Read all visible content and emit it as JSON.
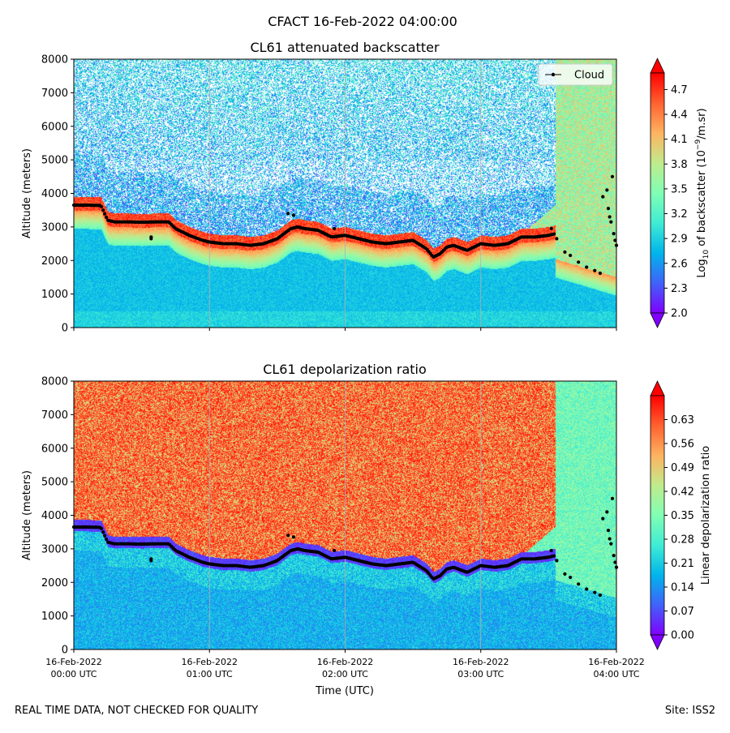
{
  "figure": {
    "title": "CFACT 16-Feb-2022 04:00:00",
    "footer_left": "REAL TIME DATA, NOT CHECKED FOR QUALITY",
    "footer_right": "Site: ISS2"
  },
  "colors": {
    "rainbow": [
      "#8000ff",
      "#4062fa",
      "#00b5eb",
      "#40ecd4",
      "#80ffb4",
      "#c0eb8d",
      "#ffb360",
      "#ff6130",
      "#ff0000"
    ],
    "cloud_marker": "#000000",
    "grid": "#b0b0b0"
  },
  "chart_data": [
    {
      "id": "backscatter",
      "type": "heatmap",
      "title": "CL61 attenuated backscatter",
      "xlabel": "",
      "ylabel": "Altitude (meters)",
      "xlim": [
        0,
        4
      ],
      "ylim": [
        0,
        8000
      ],
      "yticks": [
        "0",
        "1000",
        "2000",
        "3000",
        "4000",
        "5000",
        "6000",
        "7000",
        "8000"
      ],
      "legend": {
        "label": "Cloud",
        "position": "top-right"
      },
      "colorbar": {
        "label_pre": "Log",
        "label_sub": "10",
        "label_mid": " of backscatter (10",
        "label_sup": "−9",
        "label_post": "/m.sr)",
        "min": 2.0,
        "max": 4.9,
        "extend": "both",
        "ticks": [
          "2.0",
          "2.3",
          "2.6",
          "2.9",
          "3.2",
          "3.5",
          "3.8",
          "4.1",
          "4.4",
          "4.7"
        ]
      }
    },
    {
      "id": "depolarization",
      "type": "heatmap",
      "title": "CL61 depolarization ratio",
      "xlabel": "Time (UTC)",
      "ylabel": "Altitude (meters)",
      "xlim": [
        0,
        4
      ],
      "ylim": [
        0,
        8000
      ],
      "yticks": [
        "0",
        "1000",
        "2000",
        "3000",
        "4000",
        "5000",
        "6000",
        "7000",
        "8000"
      ],
      "xticks": [
        {
          "line1": "16-Feb-2022",
          "line2": "00:00 UTC"
        },
        {
          "line1": "16-Feb-2022",
          "line2": "01:00 UTC"
        },
        {
          "line1": "16-Feb-2022",
          "line2": "02:00 UTC"
        },
        {
          "line1": "16-Feb-2022",
          "line2": "03:00 UTC"
        },
        {
          "line1": "16-Feb-2022",
          "line2": "04:00 UTC"
        }
      ],
      "colorbar": {
        "label": "Linear depolarization ratio",
        "min": 0.0,
        "max": 0.7,
        "extend": "both",
        "ticks": [
          "0.00",
          "0.07",
          "0.14",
          "0.21",
          "0.28",
          "0.35",
          "0.42",
          "0.49",
          "0.56",
          "0.63"
        ]
      }
    }
  ],
  "cloud_base": {
    "description": "Cloud base height (m) vs time (hours UTC)",
    "time_h": [
      0.0,
      0.1,
      0.2,
      0.25,
      0.3,
      0.4,
      0.5,
      0.6,
      0.7,
      0.75,
      0.85,
      0.95,
      1.0,
      1.1,
      1.2,
      1.3,
      1.4,
      1.5,
      1.6,
      1.65,
      1.7,
      1.8,
      1.9,
      2.0,
      2.1,
      2.2,
      2.3,
      2.4,
      2.5,
      2.6,
      2.65,
      2.7,
      2.75,
      2.8,
      2.9,
      3.0,
      3.1,
      3.2,
      3.3,
      3.4,
      3.5,
      3.55
    ],
    "height_m": [
      3650,
      3650,
      3640,
      3200,
      3150,
      3150,
      3140,
      3150,
      3150,
      2950,
      2750,
      2600,
      2550,
      2500,
      2500,
      2450,
      2500,
      2650,
      2950,
      3000,
      2950,
      2900,
      2700,
      2750,
      2650,
      2550,
      2500,
      2550,
      2600,
      2350,
      2100,
      2200,
      2400,
      2450,
      2300,
      2500,
      2450,
      2500,
      2700,
      2700,
      2750,
      2800
    ],
    "scatter_time_h": [
      0.57,
      0.57,
      1.58,
      1.62,
      1.92,
      3.52,
      3.56,
      3.62,
      3.66,
      3.72,
      3.78,
      3.84,
      3.88,
      3.9,
      3.93,
      3.94,
      3.95,
      3.96,
      3.97,
      3.98,
      3.99,
      4.0
    ],
    "scatter_height_m": [
      2700,
      2650,
      3400,
      3350,
      2950,
      2950,
      2650,
      2250,
      2150,
      1950,
      1800,
      1700,
      1620,
      3900,
      4100,
      3550,
      3300,
      3150,
      4500,
      2800,
      2600,
      2450
    ]
  }
}
